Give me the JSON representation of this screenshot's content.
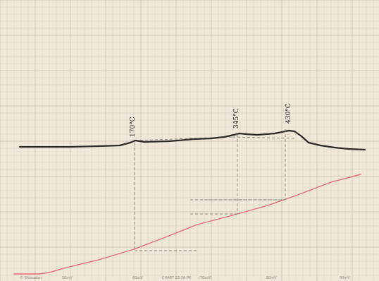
{
  "chart_data": {
    "type": "line",
    "title": "",
    "xlabel": "",
    "ylabel": "",
    "grid": true,
    "series": [
      {
        "kind": "signal",
        "color": "#2e2a27",
        "points": [
          [
            28,
            208
          ],
          [
            60,
            208
          ],
          [
            100,
            208
          ],
          [
            140,
            207
          ],
          [
            170,
            206
          ],
          [
            185,
            202
          ],
          [
            192,
            199
          ],
          [
            205,
            201
          ],
          [
            240,
            200
          ],
          [
            275,
            197
          ],
          [
            300,
            196
          ],
          [
            318,
            194
          ],
          [
            332,
            191
          ],
          [
            340,
            189
          ],
          [
            350,
            190
          ],
          [
            365,
            191
          ],
          [
            378,
            190
          ],
          [
            390,
            189
          ],
          [
            400,
            187
          ],
          [
            410,
            185
          ],
          [
            418,
            186
          ],
          [
            428,
            193
          ],
          [
            438,
            202
          ],
          [
            455,
            206
          ],
          [
            475,
            209
          ],
          [
            495,
            211
          ],
          [
            518,
            212
          ]
        ]
      },
      {
        "kind": "temperature",
        "color": "#e06a78",
        "points": [
          [
            20,
            388
          ],
          [
            55,
            388
          ],
          [
            70,
            386
          ],
          [
            90,
            380
          ],
          [
            140,
            368
          ],
          [
            190,
            353
          ],
          [
            240,
            334
          ],
          [
            280,
            318
          ],
          [
            330,
            305
          ],
          [
            380,
            291
          ],
          [
            420,
            277
          ],
          [
            470,
            258
          ],
          [
            512,
            247
          ]
        ]
      }
    ],
    "annotations": [
      {
        "text": "170°C",
        "x": 191,
        "y": 194,
        "dropX": 191,
        "dropY": 355,
        "linkY": 355,
        "linkX": 280
      },
      {
        "text": "345°C",
        "x": 338,
        "y": 182,
        "dropX": 337,
        "dropY": 303,
        "linkY": 303,
        "linkX": 290
      },
      {
        "text": "430°C",
        "x": 412,
        "y": 175,
        "dropX": 405,
        "dropY": 283,
        "linkY": 283,
        "linkX": 290
      }
    ],
    "footer_labels": [
      "© Shimadzu",
      "50mV",
      "60mV",
      "CHART 23-2A-PK",
      "(70mV)",
      "80mV",
      "90mV"
    ],
    "dashed_guides": [
      {
        "points": [
          [
            192,
            199
          ],
          [
            330,
            194
          ]
        ]
      },
      {
        "points": [
          [
            330,
            194
          ],
          [
            420,
            196
          ]
        ]
      },
      {
        "points": [
          [
            270,
            283
          ],
          [
            405,
            283
          ]
        ]
      },
      {
        "points": [
          [
            270,
            303
          ],
          [
            337,
            303
          ]
        ]
      }
    ]
  }
}
